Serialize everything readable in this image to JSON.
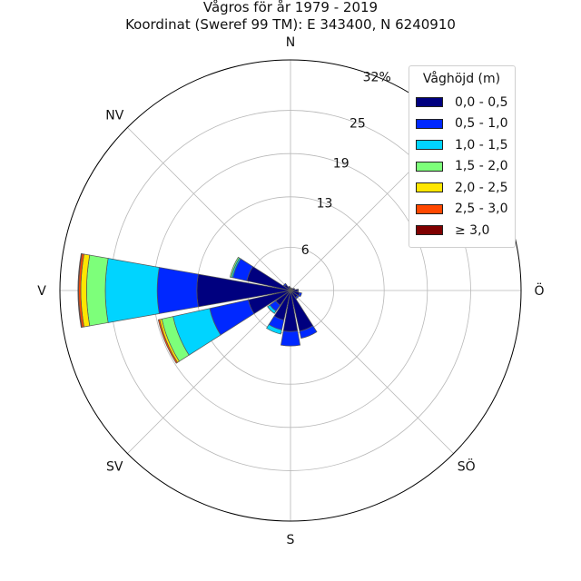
{
  "chart_data": {
    "type": "windrose",
    "title": "Vågros för år 1979 - 2019",
    "subtitle": "Koordinat (Sweref 99 TM): E 343400, N 6240910",
    "direction_labels": [
      "N",
      "NV",
      "V",
      "SV",
      "S",
      "SÖ",
      "Ö",
      "NÖ"
    ],
    "radial_ticks": [
      "6",
      "13",
      "19",
      "25",
      "32%"
    ],
    "rmax": 32,
    "grid": true,
    "legend": {
      "title": "Våghöjd (m)",
      "placement": "top-right",
      "labels": [
        "0,0 - 0,5",
        "0,5 - 1,0",
        "1,0 - 1,5",
        "1,5 - 2,0",
        "2,0 - 2,5",
        "2,5 - 3,0",
        "≥ 3,0"
      ],
      "colors": [
        "#00007f",
        "#0028ff",
        "#00d4ff",
        "#7dff7a",
        "#ffe600",
        "#ff4800",
        "#7f0000"
      ]
    },
    "sectors": [
      {
        "direction_deg": 0,
        "values": [
          0.4,
          0,
          0,
          0,
          0,
          0,
          0
        ]
      },
      {
        "direction_deg": 22.5,
        "values": [
          0.3,
          0,
          0,
          0,
          0,
          0,
          0
        ]
      },
      {
        "direction_deg": 45,
        "values": [
          0.4,
          0,
          0,
          0,
          0,
          0,
          0
        ]
      },
      {
        "direction_deg": 67.5,
        "values": [
          0.6,
          0,
          0,
          0,
          0,
          0,
          0
        ]
      },
      {
        "direction_deg": 90,
        "values": [
          1.0,
          0.1,
          0,
          0,
          0,
          0,
          0
        ]
      },
      {
        "direction_deg": 112.5,
        "values": [
          1.3,
          0.3,
          0,
          0,
          0,
          0,
          0
        ]
      },
      {
        "direction_deg": 135,
        "values": [
          1.2,
          0.2,
          0,
          0,
          0,
          0,
          0
        ]
      },
      {
        "direction_deg": 157.5,
        "values": [
          5.8,
          1.0,
          0,
          0,
          0,
          0,
          0
        ]
      },
      {
        "direction_deg": 180,
        "values": [
          5.7,
          2.0,
          0,
          0,
          0,
          0,
          0
        ]
      },
      {
        "direction_deg": 202.5,
        "values": [
          4.2,
          1.4,
          0.6,
          0,
          0,
          0,
          0
        ]
      },
      {
        "direction_deg": 225,
        "values": [
          2.5,
          1.0,
          0.4,
          0,
          0,
          0,
          0
        ]
      },
      {
        "direction_deg": 247.5,
        "values": [
          6.0,
          5.5,
          5.2,
          1.6,
          0.3,
          0.2,
          0
        ]
      },
      {
        "direction_deg": 270,
        "values": [
          13.0,
          5.5,
          7.2,
          2.6,
          0.8,
          0.3,
          0.1
        ]
      },
      {
        "direction_deg": 292.5,
        "values": [
          6.2,
          2.0,
          0.2,
          0.2,
          0,
          0,
          0
        ]
      },
      {
        "direction_deg": 315,
        "values": [
          1.0,
          0.2,
          0,
          0,
          0,
          0,
          0
        ]
      },
      {
        "direction_deg": 337.5,
        "values": [
          0.6,
          0,
          0,
          0,
          0,
          0,
          0
        ]
      }
    ]
  }
}
